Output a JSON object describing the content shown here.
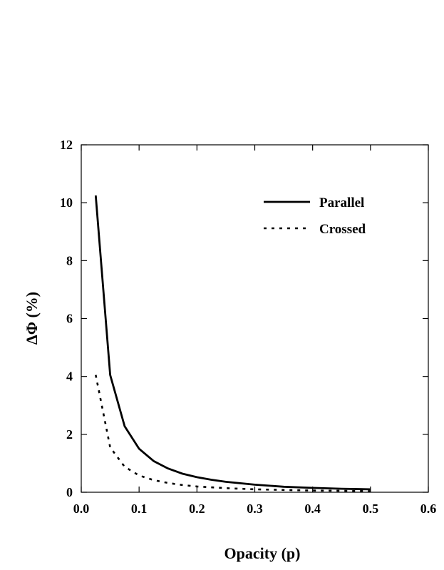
{
  "chart_data": {
    "type": "line",
    "title": "",
    "xlabel": "Opacity (p)",
    "ylabel": "ΔΦ (%)",
    "xlim": [
      0.0,
      0.6
    ],
    "ylim": [
      0,
      12
    ],
    "x_ticks": [
      0.0,
      0.1,
      0.2,
      0.3,
      0.4,
      0.5,
      0.6
    ],
    "x_tick_labels": [
      "0.0",
      "0.1",
      "0.2",
      "0.3",
      "0.4",
      "0.5",
      "0.6"
    ],
    "y_ticks": [
      0,
      2,
      4,
      6,
      8,
      10,
      12
    ],
    "y_tick_labels": [
      "0",
      "2",
      "4",
      "6",
      "8",
      "10",
      "12"
    ],
    "grid": false,
    "legend_position": "top-right",
    "series": [
      {
        "name": "Parallel",
        "style": "solid",
        "color": "#000000",
        "x": [
          0.025,
          0.05,
          0.075,
          0.1,
          0.125,
          0.15,
          0.175,
          0.2,
          0.225,
          0.25,
          0.3,
          0.35,
          0.4,
          0.45,
          0.5
        ],
        "y": [
          10.25,
          4.05,
          2.28,
          1.5,
          1.08,
          0.82,
          0.64,
          0.52,
          0.43,
          0.36,
          0.26,
          0.19,
          0.15,
          0.12,
          0.1
        ]
      },
      {
        "name": "Crossed",
        "style": "dotted",
        "color": "#000000",
        "x": [
          0.025,
          0.05,
          0.075,
          0.1,
          0.125,
          0.15,
          0.175,
          0.2,
          0.25,
          0.3,
          0.35,
          0.4,
          0.45,
          0.5
        ],
        "y": [
          4.05,
          1.55,
          0.88,
          0.58,
          0.42,
          0.32,
          0.25,
          0.2,
          0.14,
          0.1,
          0.08,
          0.06,
          0.05,
          0.04
        ]
      }
    ]
  }
}
